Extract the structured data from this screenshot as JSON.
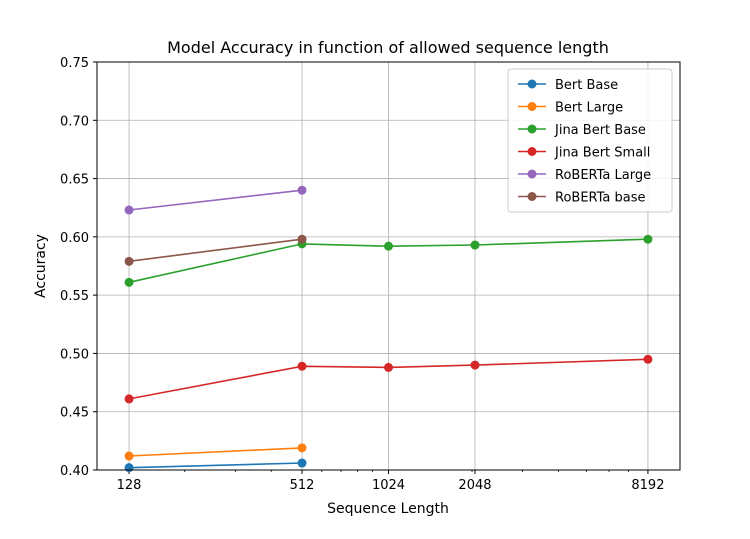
{
  "chart_data": {
    "type": "line",
    "title": "Model Accuracy in function of allowed sequence length",
    "xlabel": "Sequence Length",
    "ylabel": "Accuracy",
    "x_scale": "log2",
    "xlim": [
      128,
      8192
    ],
    "ylim": [
      0.4,
      0.75
    ],
    "grid": true,
    "legend_position": "top-right",
    "x_ticks": [
      128,
      512,
      1024,
      2048,
      8192
    ],
    "x_tick_labels": [
      "128",
      "512",
      "1024",
      "2048",
      "8192"
    ],
    "y_ticks": [
      0.4,
      0.45,
      0.5,
      0.55,
      0.6,
      0.65,
      0.7,
      0.75
    ],
    "y_tick_labels": [
      "0.40",
      "0.45",
      "0.50",
      "0.55",
      "0.60",
      "0.65",
      "0.70",
      "0.75"
    ],
    "series": [
      {
        "name": "Bert Base",
        "color": "#1f77b4",
        "x": [
          128,
          512
        ],
        "values": [
          0.402,
          0.406
        ]
      },
      {
        "name": "Bert Large",
        "color": "#ff7f0e",
        "x": [
          128,
          512
        ],
        "values": [
          0.412,
          0.419
        ]
      },
      {
        "name": "Jina Bert Base",
        "color": "#2ca02c",
        "x": [
          128,
          512,
          1024,
          2048,
          8192
        ],
        "values": [
          0.561,
          0.594,
          0.592,
          0.593,
          0.598
        ]
      },
      {
        "name": "Jina Bert Small",
        "color": "#d62728",
        "x": [
          128,
          512,
          1024,
          2048,
          8192
        ],
        "values": [
          0.461,
          0.489,
          0.488,
          0.49,
          0.495
        ]
      },
      {
        "name": "RoBERTa Large",
        "color": "#9467bd",
        "x": [
          128,
          512
        ],
        "values": [
          0.623,
          0.64
        ]
      },
      {
        "name": "RoBERTa base",
        "color": "#8c564b",
        "x": [
          128,
          512
        ],
        "values": [
          0.579,
          0.598
        ]
      }
    ]
  }
}
